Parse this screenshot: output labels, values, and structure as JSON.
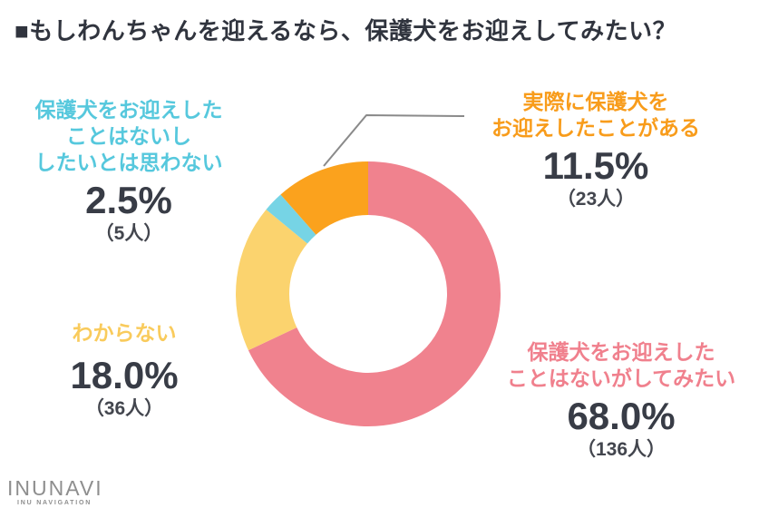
{
  "title": "■もしわんちゃんを迎えるなら、保護犬をお迎えしてみたい？",
  "chart_data": {
    "type": "pie",
    "subtype": "donut",
    "title": "もしわんちゃんを迎えるなら、保護犬をお迎えしてみたい？",
    "start_angle_deg": 0,
    "direction": "clockwise",
    "inner_radius_ratio": 0.6,
    "legend_position": "around-chart-callouts",
    "segments": [
      {
        "id": "want-to-adopt",
        "label": "保護犬をお迎えしたことはないがしてみたい",
        "percent": 68.0,
        "count": 136,
        "color": "#F0828E"
      },
      {
        "id": "dont-know",
        "label": "わからない",
        "percent": 18.0,
        "count": 36,
        "color": "#FBD36E"
      },
      {
        "id": "no-desire",
        "label": "保護犬をお迎えしたことはないししたいとは思わない",
        "percent": 2.5,
        "count": 5,
        "color": "#76D4E5"
      },
      {
        "id": "adopted",
        "label": "実際に保護犬をお迎えしたことがある",
        "percent": 11.5,
        "count": 23,
        "color": "#FBA21D"
      }
    ]
  },
  "labels": {
    "no_desire": {
      "lines": [
        "保護犬をお迎えした",
        "ことはないし",
        "したいとは思わない"
      ],
      "percent": "2.5%",
      "count": "（5人）",
      "color": "#56C8DD"
    },
    "adopted": {
      "lines": [
        "実際に保護犬を",
        "お迎えしたことがある"
      ],
      "percent": "11.5%",
      "count": "（23人）",
      "color": "#F89C1B"
    },
    "dont_know": {
      "lines": [
        "わからない"
      ],
      "percent": "18.0%",
      "count": "（36人）",
      "color": "#F9CB5C"
    },
    "want_to_adopt": {
      "lines": [
        "保護犬をお迎えした",
        "ことはないがしてみたい"
      ],
      "percent": "68.0%",
      "count": "（136人）",
      "color": "#F0808D"
    }
  },
  "colors": {
    "title_text": "#30343e",
    "number_text": "#383c46",
    "leader_line": "#8a8a8a",
    "background": "#ffffff",
    "logo_gray": "#8e8e8e"
  },
  "logo": {
    "name": "INUNAVI",
    "subtitle": "INU NAVIGATION"
  }
}
